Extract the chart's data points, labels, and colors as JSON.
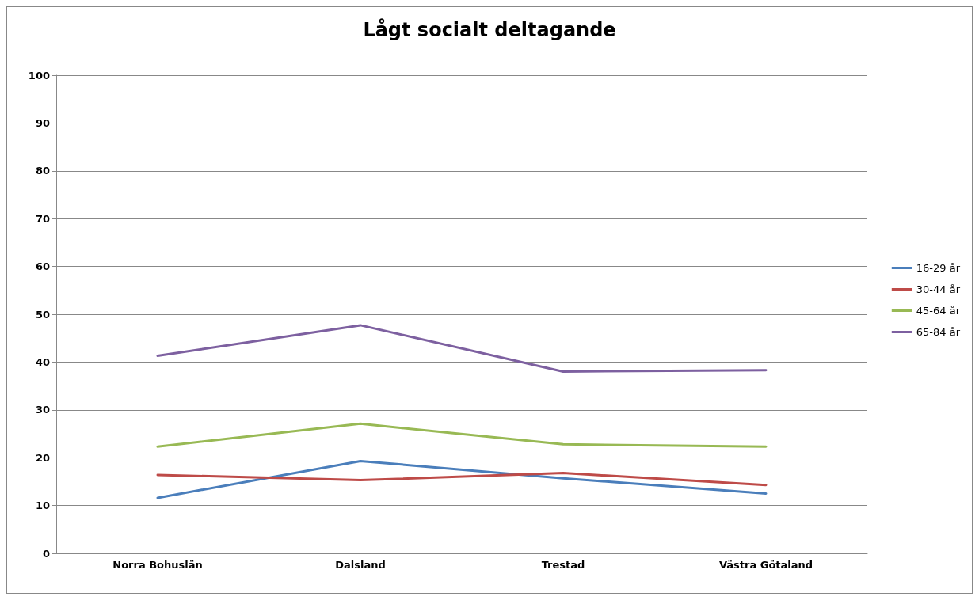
{
  "chart_data": {
    "type": "line",
    "title": "Lågt socialt deltagande",
    "categories": [
      "Norra Bohuslän",
      "Dalsland",
      "Trestad",
      "Västra Götaland"
    ],
    "series": [
      {
        "name": "16-29 år",
        "color": "#4a7ebb",
        "values": [
          11.6,
          19.3,
          15.7,
          12.5
        ]
      },
      {
        "name": "30-44 år",
        "color": "#be4b48",
        "values": [
          16.4,
          15.3,
          16.8,
          14.3
        ]
      },
      {
        "name": "45-64 år",
        "color": "#98b954",
        "values": [
          22.3,
          27.1,
          22.8,
          22.3
        ]
      },
      {
        "name": "65-84 år",
        "color": "#7d60a0",
        "values": [
          41.3,
          47.7,
          38.0,
          38.3
        ]
      }
    ],
    "ylim": [
      0,
      100
    ],
    "yticks": [
      0,
      10,
      20,
      30,
      40,
      50,
      60,
      70,
      80,
      90,
      100
    ],
    "grid": "y",
    "legend": "right",
    "marker": "none",
    "line_style": "solid"
  }
}
